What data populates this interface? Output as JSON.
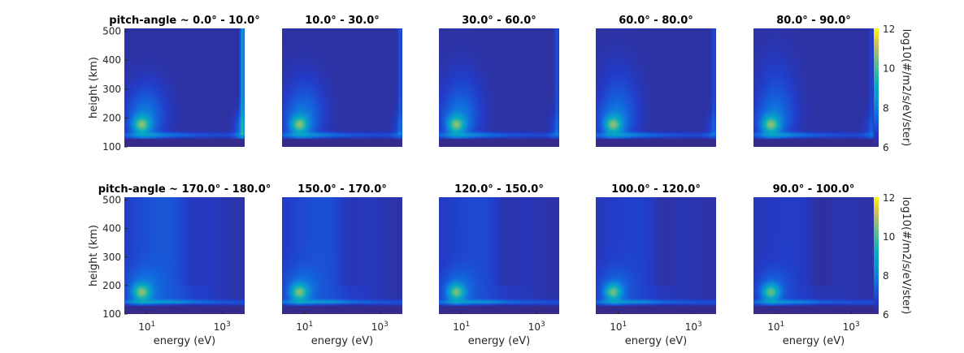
{
  "chart_data": {
    "type": "heatmap",
    "xlabel": "energy (eV)",
    "ylabel": "height (km)",
    "x_scale": "log",
    "x_ticks": [
      {
        "base": "10",
        "exp": "1"
      },
      {
        "base": "10",
        "exp": "3"
      }
    ],
    "y_ticks": [
      "500",
      "400",
      "300",
      "200",
      "100"
    ],
    "ylim": [
      100,
      510
    ],
    "colorbar": {
      "label": "log10(#/m2/s/eV/ster)",
      "ticks": [
        "12",
        "10",
        "8",
        "6"
      ],
      "range": [
        6,
        12
      ],
      "colormap": "parula"
    },
    "rows": [
      {
        "panels": [
          {
            "title": "pitch-angle ~ 0.0° - 10.0°",
            "model": "downward",
            "variant": 0
          },
          {
            "title": "10.0° - 30.0°",
            "model": "downward",
            "variant": 1
          },
          {
            "title": "30.0° - 60.0°",
            "model": "downward",
            "variant": 2
          },
          {
            "title": "60.0° - 80.0°",
            "model": "downward",
            "variant": 3
          },
          {
            "title": "80.0° - 90.0°",
            "model": "downward",
            "variant": 4
          }
        ]
      },
      {
        "panels": [
          {
            "title": "pitch-angle ~ 170.0° - 180.0°",
            "model": "upward",
            "variant": 0
          },
          {
            "title": "150.0° - 170.0°",
            "model": "upward",
            "variant": 1
          },
          {
            "title": "120.0° - 150.0°",
            "model": "upward",
            "variant": 2
          },
          {
            "title": "100.0° - 120.0°",
            "model": "upward",
            "variant": 3
          },
          {
            "title": "90.0° - 100.0°",
            "model": "upward",
            "variant": 4
          }
        ]
      }
    ]
  }
}
